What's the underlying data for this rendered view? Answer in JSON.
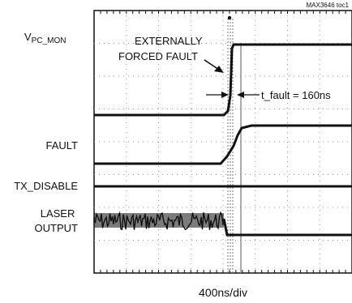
{
  "chart_data": {
    "type": "line",
    "figure_id": "MAX3646 toc1",
    "xlabel": "400ns/div",
    "grid": true,
    "channels": [
      {
        "name": "V",
        "subscript": "PC_MON"
      },
      {
        "name": "FAULT"
      },
      {
        "name": "TX_DISABLE"
      },
      {
        "name": "LASER\nOUTPUT"
      }
    ],
    "annotations": {
      "forced_fault_line1": "EXTERNALLY",
      "forced_fault_line2": "FORCED FAULT",
      "t_fault_label": "t_fault = 160ns"
    }
  }
}
